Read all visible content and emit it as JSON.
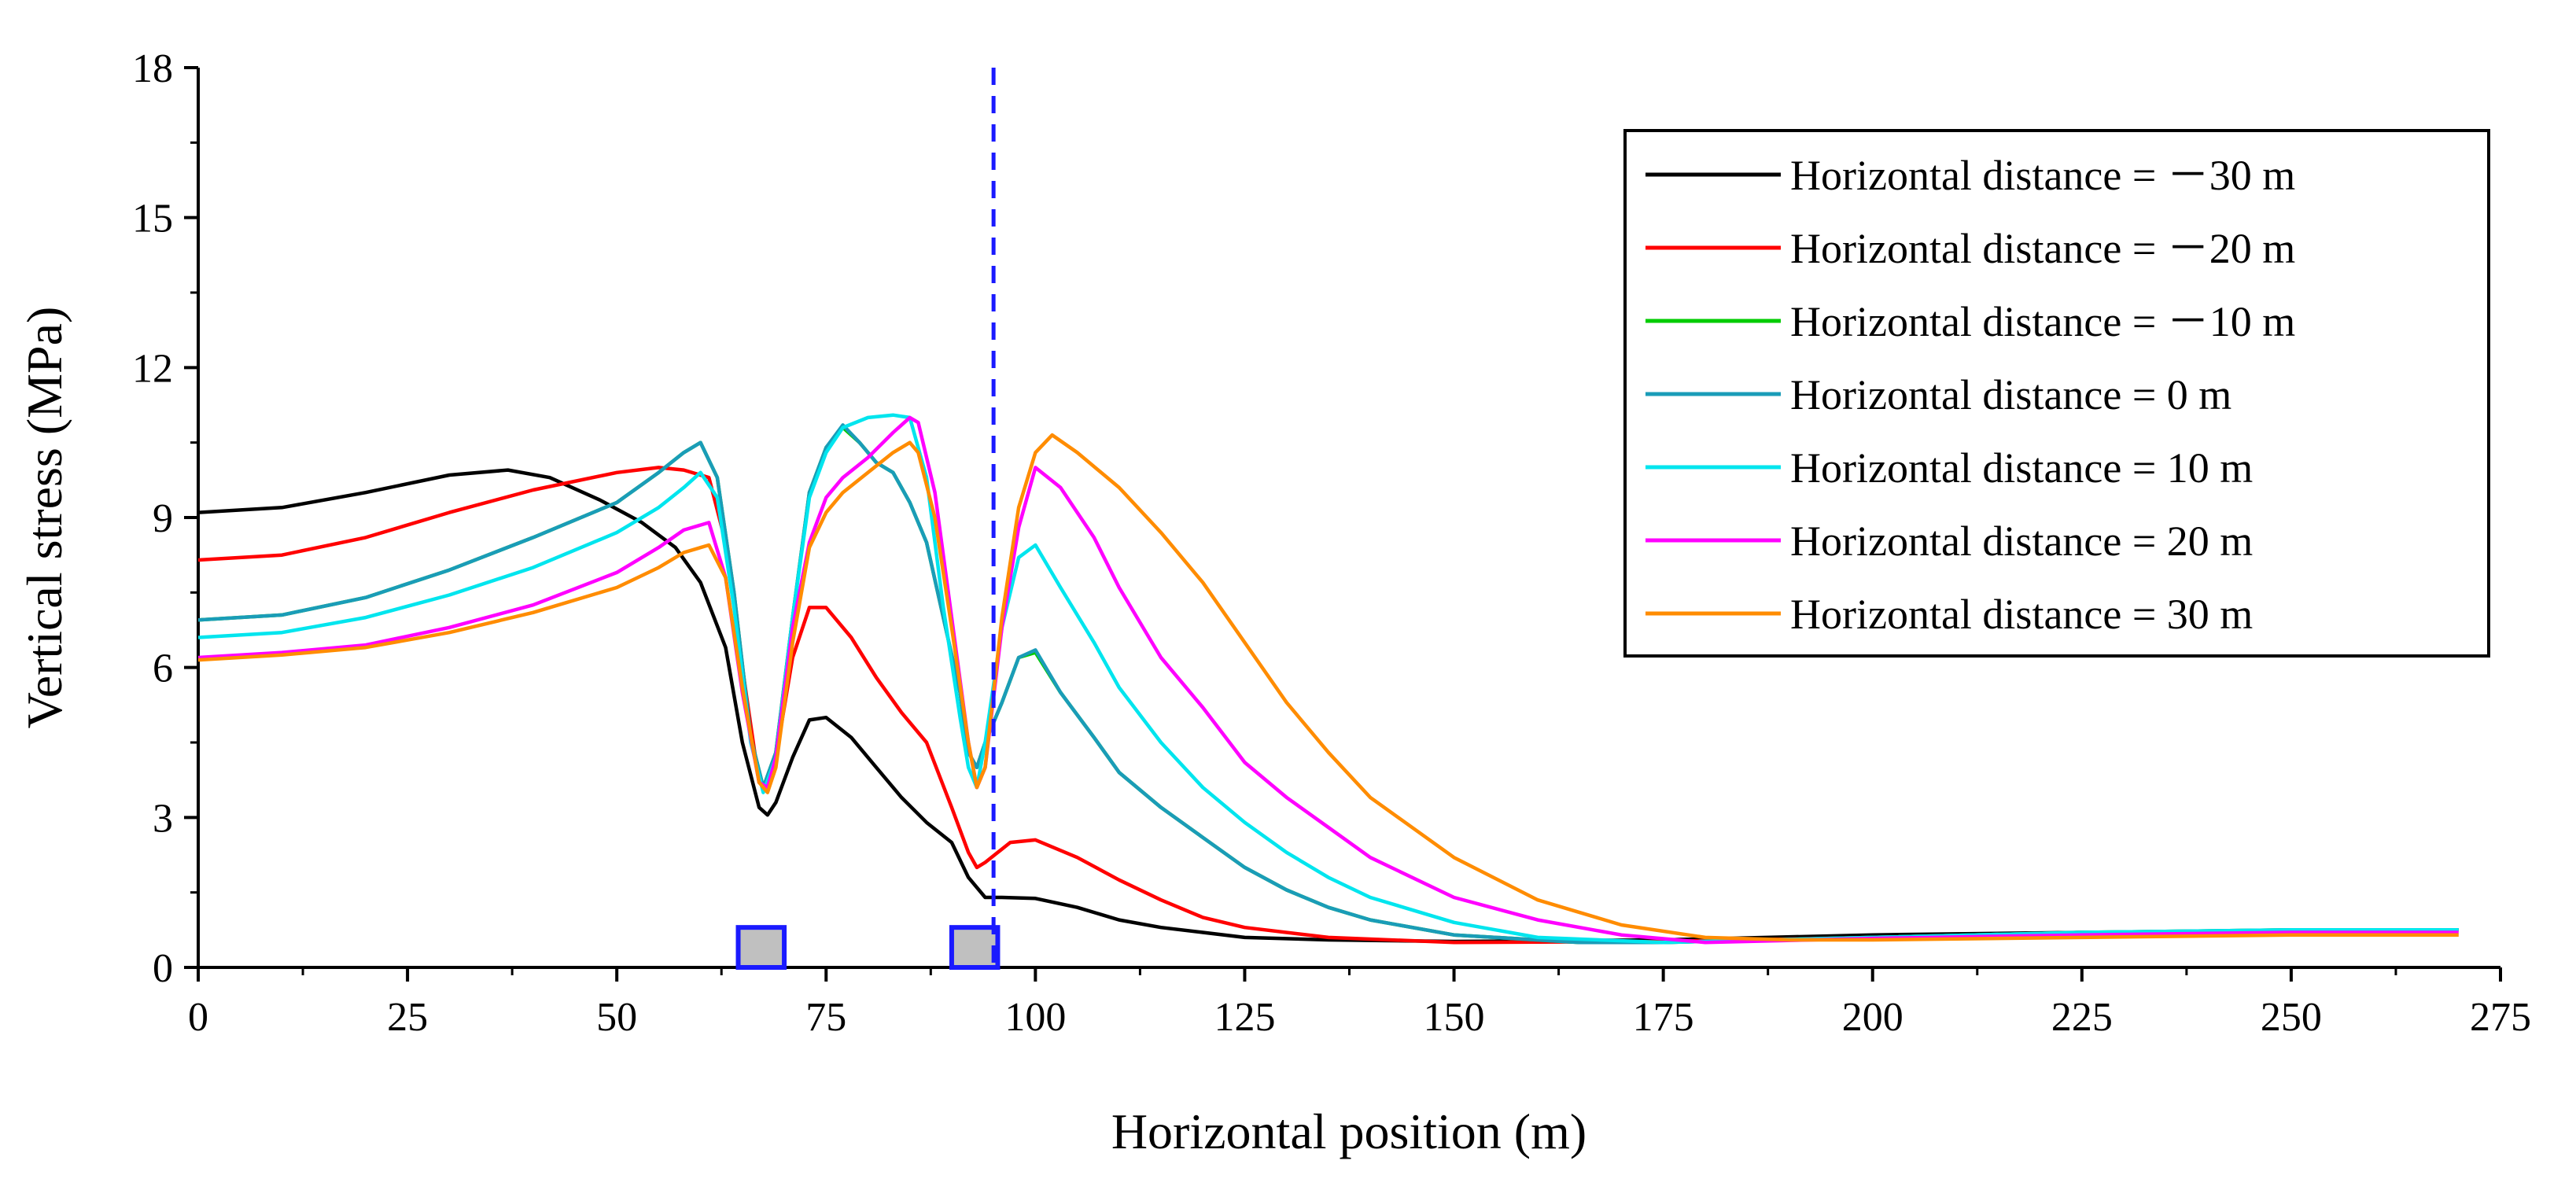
{
  "chart_data": {
    "type": "line",
    "title": "",
    "xlabel": "Horizontal position (m)",
    "ylabel": "Vertical stress (MPa)",
    "xlim": [
      0,
      275
    ],
    "ylim": [
      0,
      18
    ],
    "x_ticks": [
      0,
      25,
      50,
      75,
      100,
      125,
      150,
      175,
      200,
      225,
      250,
      275
    ],
    "y_ticks": [
      0,
      3,
      6,
      9,
      12,
      15,
      18
    ],
    "grid": false,
    "legend_position": "top-right",
    "reference_line": {
      "x": 95,
      "style": "dashed",
      "color": "#1a1aff"
    },
    "markers": [
      {
        "name": "roadway-1",
        "x_from": 64.5,
        "x_to": 70,
        "y_from": 0,
        "y_to": 0.8,
        "fill": "#c0c0c0",
        "stroke": "#1a1aff"
      },
      {
        "name": "roadway-2",
        "x_from": 90,
        "x_to": 95.5,
        "y_from": 0,
        "y_to": 0.8,
        "fill": "#c0c0c0",
        "stroke": "#1a1aff"
      }
    ],
    "series": [
      {
        "name": "Horizontal distance = －30 m",
        "color": "#000000",
        "points": [
          [
            0,
            9.1
          ],
          [
            10,
            9.2
          ],
          [
            20,
            9.5
          ],
          [
            30,
            9.85
          ],
          [
            37,
            9.95
          ],
          [
            42,
            9.8
          ],
          [
            48,
            9.35
          ],
          [
            53,
            8.9
          ],
          [
            57,
            8.4
          ],
          [
            60,
            7.7
          ],
          [
            63,
            6.4
          ],
          [
            65,
            4.5
          ],
          [
            67,
            3.2
          ],
          [
            68,
            3.05
          ],
          [
            69,
            3.3
          ],
          [
            71,
            4.2
          ],
          [
            73,
            4.95
          ],
          [
            75,
            5.0
          ],
          [
            78,
            4.6
          ],
          [
            81,
            4.0
          ],
          [
            84,
            3.4
          ],
          [
            87,
            2.9
          ],
          [
            90,
            2.5
          ],
          [
            92,
            1.8
          ],
          [
            94,
            1.4
          ],
          [
            96,
            1.4
          ],
          [
            100,
            1.38
          ],
          [
            105,
            1.2
          ],
          [
            110,
            0.95
          ],
          [
            115,
            0.8
          ],
          [
            120,
            0.7
          ],
          [
            125,
            0.6
          ],
          [
            135,
            0.55
          ],
          [
            150,
            0.52
          ],
          [
            175,
            0.55
          ],
          [
            200,
            0.65
          ],
          [
            225,
            0.7
          ],
          [
            250,
            0.72
          ],
          [
            270,
            0.75
          ]
        ]
      },
      {
        "name": "Horizontal distance = －20 m",
        "color": "#ff0000",
        "points": [
          [
            0,
            8.15
          ],
          [
            10,
            8.25
          ],
          [
            20,
            8.6
          ],
          [
            30,
            9.1
          ],
          [
            40,
            9.55
          ],
          [
            50,
            9.9
          ],
          [
            55,
            10.0
          ],
          [
            58,
            9.95
          ],
          [
            61,
            9.8
          ],
          [
            63,
            8.5
          ],
          [
            65,
            6.0
          ],
          [
            67,
            3.7
          ],
          [
            68,
            3.6
          ],
          [
            69,
            4.2
          ],
          [
            71,
            6.2
          ],
          [
            73,
            7.2
          ],
          [
            75,
            7.2
          ],
          [
            78,
            6.6
          ],
          [
            81,
            5.8
          ],
          [
            84,
            5.1
          ],
          [
            87,
            4.5
          ],
          [
            90,
            3.2
          ],
          [
            92,
            2.3
          ],
          [
            93,
            2.0
          ],
          [
            94,
            2.1
          ],
          [
            97,
            2.5
          ],
          [
            100,
            2.55
          ],
          [
            105,
            2.2
          ],
          [
            110,
            1.75
          ],
          [
            115,
            1.35
          ],
          [
            120,
            1.0
          ],
          [
            125,
            0.8
          ],
          [
            135,
            0.6
          ],
          [
            150,
            0.5
          ],
          [
            175,
            0.52
          ],
          [
            200,
            0.6
          ],
          [
            225,
            0.7
          ],
          [
            250,
            0.72
          ],
          [
            270,
            0.75
          ]
        ]
      },
      {
        "name": "Horizontal distance = －10 m",
        "color": "#00cc00",
        "points": [
          [
            0,
            6.95
          ],
          [
            10,
            7.05
          ],
          [
            20,
            7.4
          ],
          [
            30,
            7.95
          ],
          [
            40,
            8.6
          ],
          [
            50,
            9.3
          ],
          [
            55,
            9.9
          ],
          [
            58,
            10.3
          ],
          [
            60,
            10.5
          ],
          [
            62,
            9.8
          ],
          [
            64,
            7.5
          ],
          [
            66,
            4.6
          ],
          [
            67.5,
            3.6
          ],
          [
            69,
            4.3
          ],
          [
            71,
            7.0
          ],
          [
            73,
            9.5
          ],
          [
            75,
            10.4
          ],
          [
            77,
            10.8
          ],
          [
            79,
            10.5
          ],
          [
            81,
            10.1
          ],
          [
            83,
            9.9
          ],
          [
            85,
            9.3
          ],
          [
            87,
            8.5
          ],
          [
            89,
            7.0
          ],
          [
            91,
            5.5
          ],
          [
            92,
            4.3
          ],
          [
            93,
            4.0
          ],
          [
            94,
            4.5
          ],
          [
            96,
            5.3
          ],
          [
            98,
            6.2
          ],
          [
            100,
            6.3
          ],
          [
            103,
            5.5
          ],
          [
            107,
            4.6
          ],
          [
            110,
            3.9
          ],
          [
            115,
            3.2
          ],
          [
            120,
            2.6
          ],
          [
            125,
            2.0
          ],
          [
            130,
            1.55
          ],
          [
            135,
            1.2
          ],
          [
            140,
            0.95
          ],
          [
            150,
            0.65
          ],
          [
            165,
            0.5
          ],
          [
            175,
            0.5
          ],
          [
            200,
            0.6
          ],
          [
            225,
            0.7
          ],
          [
            250,
            0.75
          ],
          [
            270,
            0.75
          ]
        ]
      },
      {
        "name": "Horizontal distance = 0 m",
        "color": "#1a9cb8",
        "points": [
          [
            0,
            6.95
          ],
          [
            10,
            7.05
          ],
          [
            20,
            7.4
          ],
          [
            30,
            7.95
          ],
          [
            40,
            8.6
          ],
          [
            50,
            9.3
          ],
          [
            55,
            9.9
          ],
          [
            58,
            10.3
          ],
          [
            60,
            10.5
          ],
          [
            62,
            9.8
          ],
          [
            64,
            7.5
          ],
          [
            66,
            4.6
          ],
          [
            67.5,
            3.6
          ],
          [
            69,
            4.3
          ],
          [
            71,
            7.0
          ],
          [
            73,
            9.5
          ],
          [
            75,
            10.4
          ],
          [
            77,
            10.85
          ],
          [
            79,
            10.5
          ],
          [
            81,
            10.1
          ],
          [
            83,
            9.9
          ],
          [
            85,
            9.3
          ],
          [
            87,
            8.5
          ],
          [
            89,
            7.0
          ],
          [
            91,
            5.5
          ],
          [
            92,
            4.3
          ],
          [
            93,
            4.0
          ],
          [
            94,
            4.5
          ],
          [
            96,
            5.3
          ],
          [
            98,
            6.2
          ],
          [
            100,
            6.35
          ],
          [
            103,
            5.5
          ],
          [
            107,
            4.6
          ],
          [
            110,
            3.9
          ],
          [
            115,
            3.2
          ],
          [
            120,
            2.6
          ],
          [
            125,
            2.0
          ],
          [
            130,
            1.55
          ],
          [
            135,
            1.2
          ],
          [
            140,
            0.95
          ],
          [
            150,
            0.65
          ],
          [
            165,
            0.5
          ],
          [
            175,
            0.5
          ],
          [
            200,
            0.6
          ],
          [
            225,
            0.7
          ],
          [
            250,
            0.75
          ],
          [
            270,
            0.75
          ]
        ]
      },
      {
        "name": "Horizontal distance = 10 m",
        "color": "#00e5ee",
        "points": [
          [
            0,
            6.6
          ],
          [
            10,
            6.7
          ],
          [
            20,
            7.0
          ],
          [
            30,
            7.45
          ],
          [
            40,
            8.0
          ],
          [
            50,
            8.7
          ],
          [
            55,
            9.2
          ],
          [
            58,
            9.6
          ],
          [
            60,
            9.9
          ],
          [
            62,
            9.4
          ],
          [
            64,
            7.2
          ],
          [
            66,
            4.5
          ],
          [
            67.5,
            3.5
          ],
          [
            69,
            4.2
          ],
          [
            71,
            7.0
          ],
          [
            73,
            9.4
          ],
          [
            75,
            10.3
          ],
          [
            77,
            10.8
          ],
          [
            80,
            11.0
          ],
          [
            83,
            11.05
          ],
          [
            85,
            11.0
          ],
          [
            87,
            9.8
          ],
          [
            89,
            7.2
          ],
          [
            91,
            5.0
          ],
          [
            92,
            4.0
          ],
          [
            93,
            3.6
          ],
          [
            94,
            4.5
          ],
          [
            96,
            6.8
          ],
          [
            98,
            8.2
          ],
          [
            100,
            8.45
          ],
          [
            103,
            7.6
          ],
          [
            107,
            6.5
          ],
          [
            110,
            5.6
          ],
          [
            115,
            4.5
          ],
          [
            120,
            3.6
          ],
          [
            125,
            2.9
          ],
          [
            130,
            2.3
          ],
          [
            135,
            1.8
          ],
          [
            140,
            1.4
          ],
          [
            150,
            0.9
          ],
          [
            160,
            0.6
          ],
          [
            175,
            0.5
          ],
          [
            200,
            0.6
          ],
          [
            225,
            0.7
          ],
          [
            250,
            0.75
          ],
          [
            270,
            0.75
          ]
        ]
      },
      {
        "name": "Horizontal distance = 20 m",
        "color": "#ff00ff",
        "points": [
          [
            0,
            6.2
          ],
          [
            10,
            6.3
          ],
          [
            20,
            6.45
          ],
          [
            30,
            6.8
          ],
          [
            40,
            7.25
          ],
          [
            50,
            7.9
          ],
          [
            55,
            8.4
          ],
          [
            58,
            8.75
          ],
          [
            61,
            8.9
          ],
          [
            63,
            7.8
          ],
          [
            65,
            5.5
          ],
          [
            67,
            3.7
          ],
          [
            68,
            3.6
          ],
          [
            69,
            4.2
          ],
          [
            71,
            6.8
          ],
          [
            73,
            8.5
          ],
          [
            75,
            9.4
          ],
          [
            77,
            9.8
          ],
          [
            80,
            10.2
          ],
          [
            83,
            10.7
          ],
          [
            85,
            11.0
          ],
          [
            86,
            10.9
          ],
          [
            88,
            9.5
          ],
          [
            90,
            7.0
          ],
          [
            92,
            4.5
          ],
          [
            93,
            3.6
          ],
          [
            94,
            4.0
          ],
          [
            96,
            6.8
          ],
          [
            98,
            8.8
          ],
          [
            100,
            10.0
          ],
          [
            103,
            9.6
          ],
          [
            107,
            8.6
          ],
          [
            110,
            7.6
          ],
          [
            115,
            6.2
          ],
          [
            120,
            5.2
          ],
          [
            125,
            4.1
          ],
          [
            130,
            3.4
          ],
          [
            135,
            2.8
          ],
          [
            140,
            2.2
          ],
          [
            150,
            1.4
          ],
          [
            160,
            0.95
          ],
          [
            170,
            0.65
          ],
          [
            180,
            0.5
          ],
          [
            200,
            0.58
          ],
          [
            225,
            0.65
          ],
          [
            250,
            0.7
          ],
          [
            270,
            0.7
          ]
        ]
      },
      {
        "name": "Horizontal distance = 30 m",
        "color": "#ff8c00",
        "points": [
          [
            0,
            6.15
          ],
          [
            10,
            6.25
          ],
          [
            20,
            6.4
          ],
          [
            30,
            6.7
          ],
          [
            40,
            7.1
          ],
          [
            50,
            7.6
          ],
          [
            55,
            8.0
          ],
          [
            58,
            8.3
          ],
          [
            61,
            8.45
          ],
          [
            63,
            7.8
          ],
          [
            65,
            5.6
          ],
          [
            67,
            3.7
          ],
          [
            68,
            3.5
          ],
          [
            69,
            4.0
          ],
          [
            71,
            6.5
          ],
          [
            73,
            8.4
          ],
          [
            75,
            9.1
          ],
          [
            77,
            9.5
          ],
          [
            80,
            9.9
          ],
          [
            83,
            10.3
          ],
          [
            85,
            10.5
          ],
          [
            86,
            10.3
          ],
          [
            88,
            9.0
          ],
          [
            90,
            6.8
          ],
          [
            92,
            4.5
          ],
          [
            93,
            3.6
          ],
          [
            94,
            4.0
          ],
          [
            96,
            7.0
          ],
          [
            98,
            9.2
          ],
          [
            100,
            10.3
          ],
          [
            102,
            10.65
          ],
          [
            105,
            10.3
          ],
          [
            110,
            9.6
          ],
          [
            115,
            8.7
          ],
          [
            120,
            7.7
          ],
          [
            125,
            6.5
          ],
          [
            130,
            5.3
          ],
          [
            135,
            4.3
          ],
          [
            140,
            3.4
          ],
          [
            150,
            2.2
          ],
          [
            160,
            1.35
          ],
          [
            170,
            0.85
          ],
          [
            180,
            0.6
          ],
          [
            190,
            0.55
          ],
          [
            200,
            0.55
          ],
          [
            225,
            0.6
          ],
          [
            250,
            0.65
          ],
          [
            270,
            0.65
          ]
        ]
      }
    ]
  }
}
